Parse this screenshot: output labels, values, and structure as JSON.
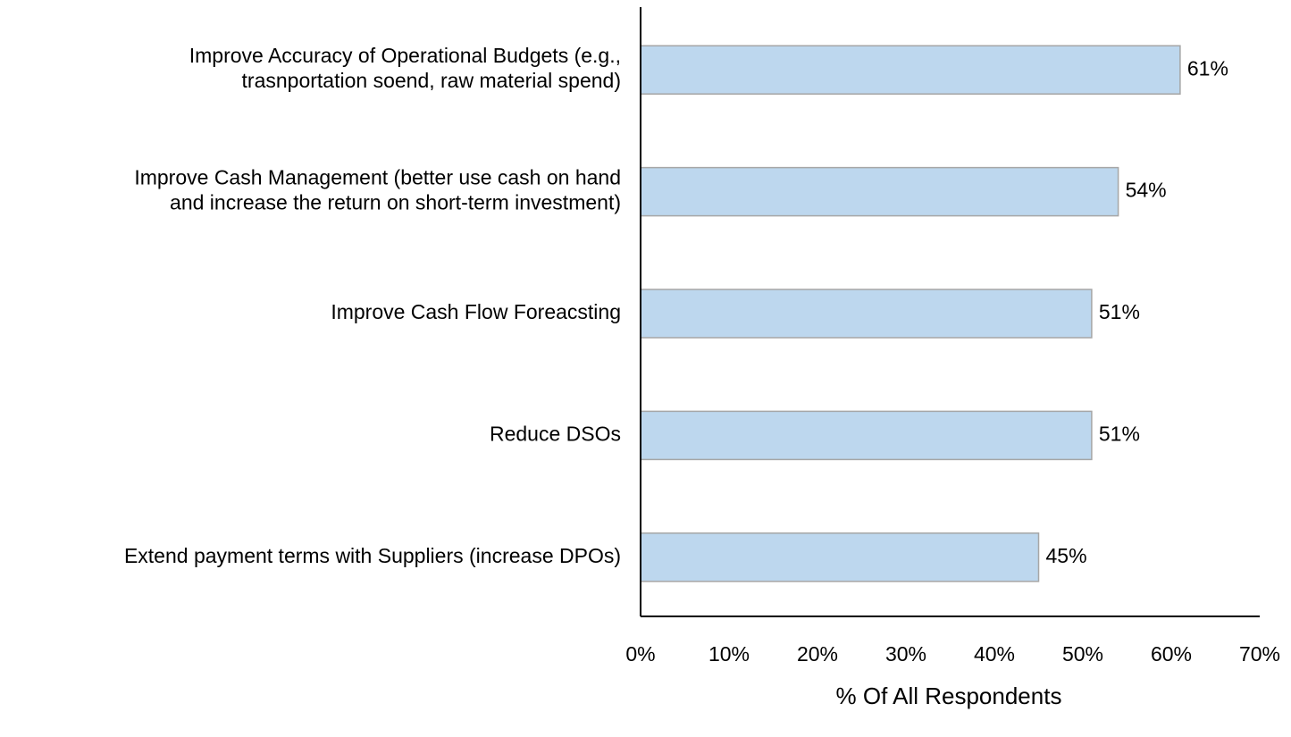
{
  "chart_data": {
    "type": "hbar",
    "x_label": "% Of All Respondents",
    "categories": [
      "Improve Accuracy of Operational Budgets (e.g.,\ntrasnportation soend, raw material spend)",
      "Improve Cash Management (better use cash on hand\nand increase the return on short-term investment)",
      "Improve Cash Flow Foreacsting",
      "Reduce DSOs",
      "Extend payment terms with Suppliers (increase DPOs)"
    ],
    "values": [
      61,
      54,
      51,
      51,
      45
    ],
    "value_labels": [
      "61%",
      "54%",
      "51%",
      "51%",
      "45%"
    ],
    "color": "#bdd7ee",
    "edge_color": "#a6a6a6",
    "xlim": [
      0,
      70
    ],
    "xticks": [
      {
        "value": 0,
        "label": "0%"
      },
      {
        "value": 10,
        "label": "10%"
      },
      {
        "value": 20,
        "label": "20%"
      },
      {
        "value": 30,
        "label": "30%"
      },
      {
        "value": 40,
        "label": "40%"
      },
      {
        "value": 50,
        "label": "50%"
      },
      {
        "value": 60,
        "label": "60%"
      },
      {
        "value": 70,
        "label": "70%"
      }
    ],
    "grid": false
  }
}
